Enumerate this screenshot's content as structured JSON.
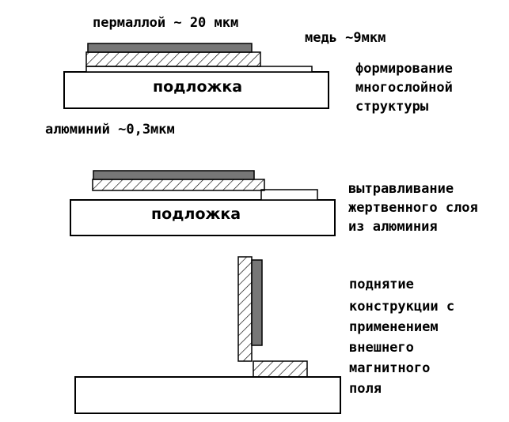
{
  "stage1": {
    "permalloy_label": "пермаллой ~ 20 мкм",
    "copper_label": "медь ~9мкм",
    "aluminum_label": "алюминий ~0,3мкм",
    "substrate_label": "подложка",
    "description": [
      "формирование",
      "многослойной",
      "структуры"
    ]
  },
  "stage2": {
    "substrate_label": "подложка",
    "description": [
      "вытравливание",
      "жертвенного слоя",
      "из алюминия"
    ]
  },
  "stage3": {
    "description": [
      "поднятие",
      "конструкции  с",
      "применением",
      "внешнего",
      "магнитного",
      "поля"
    ]
  },
  "colors": {
    "permalloy": "#777777",
    "outline": "#000000",
    "hatch": "#000000",
    "background": "#ffffff"
  }
}
